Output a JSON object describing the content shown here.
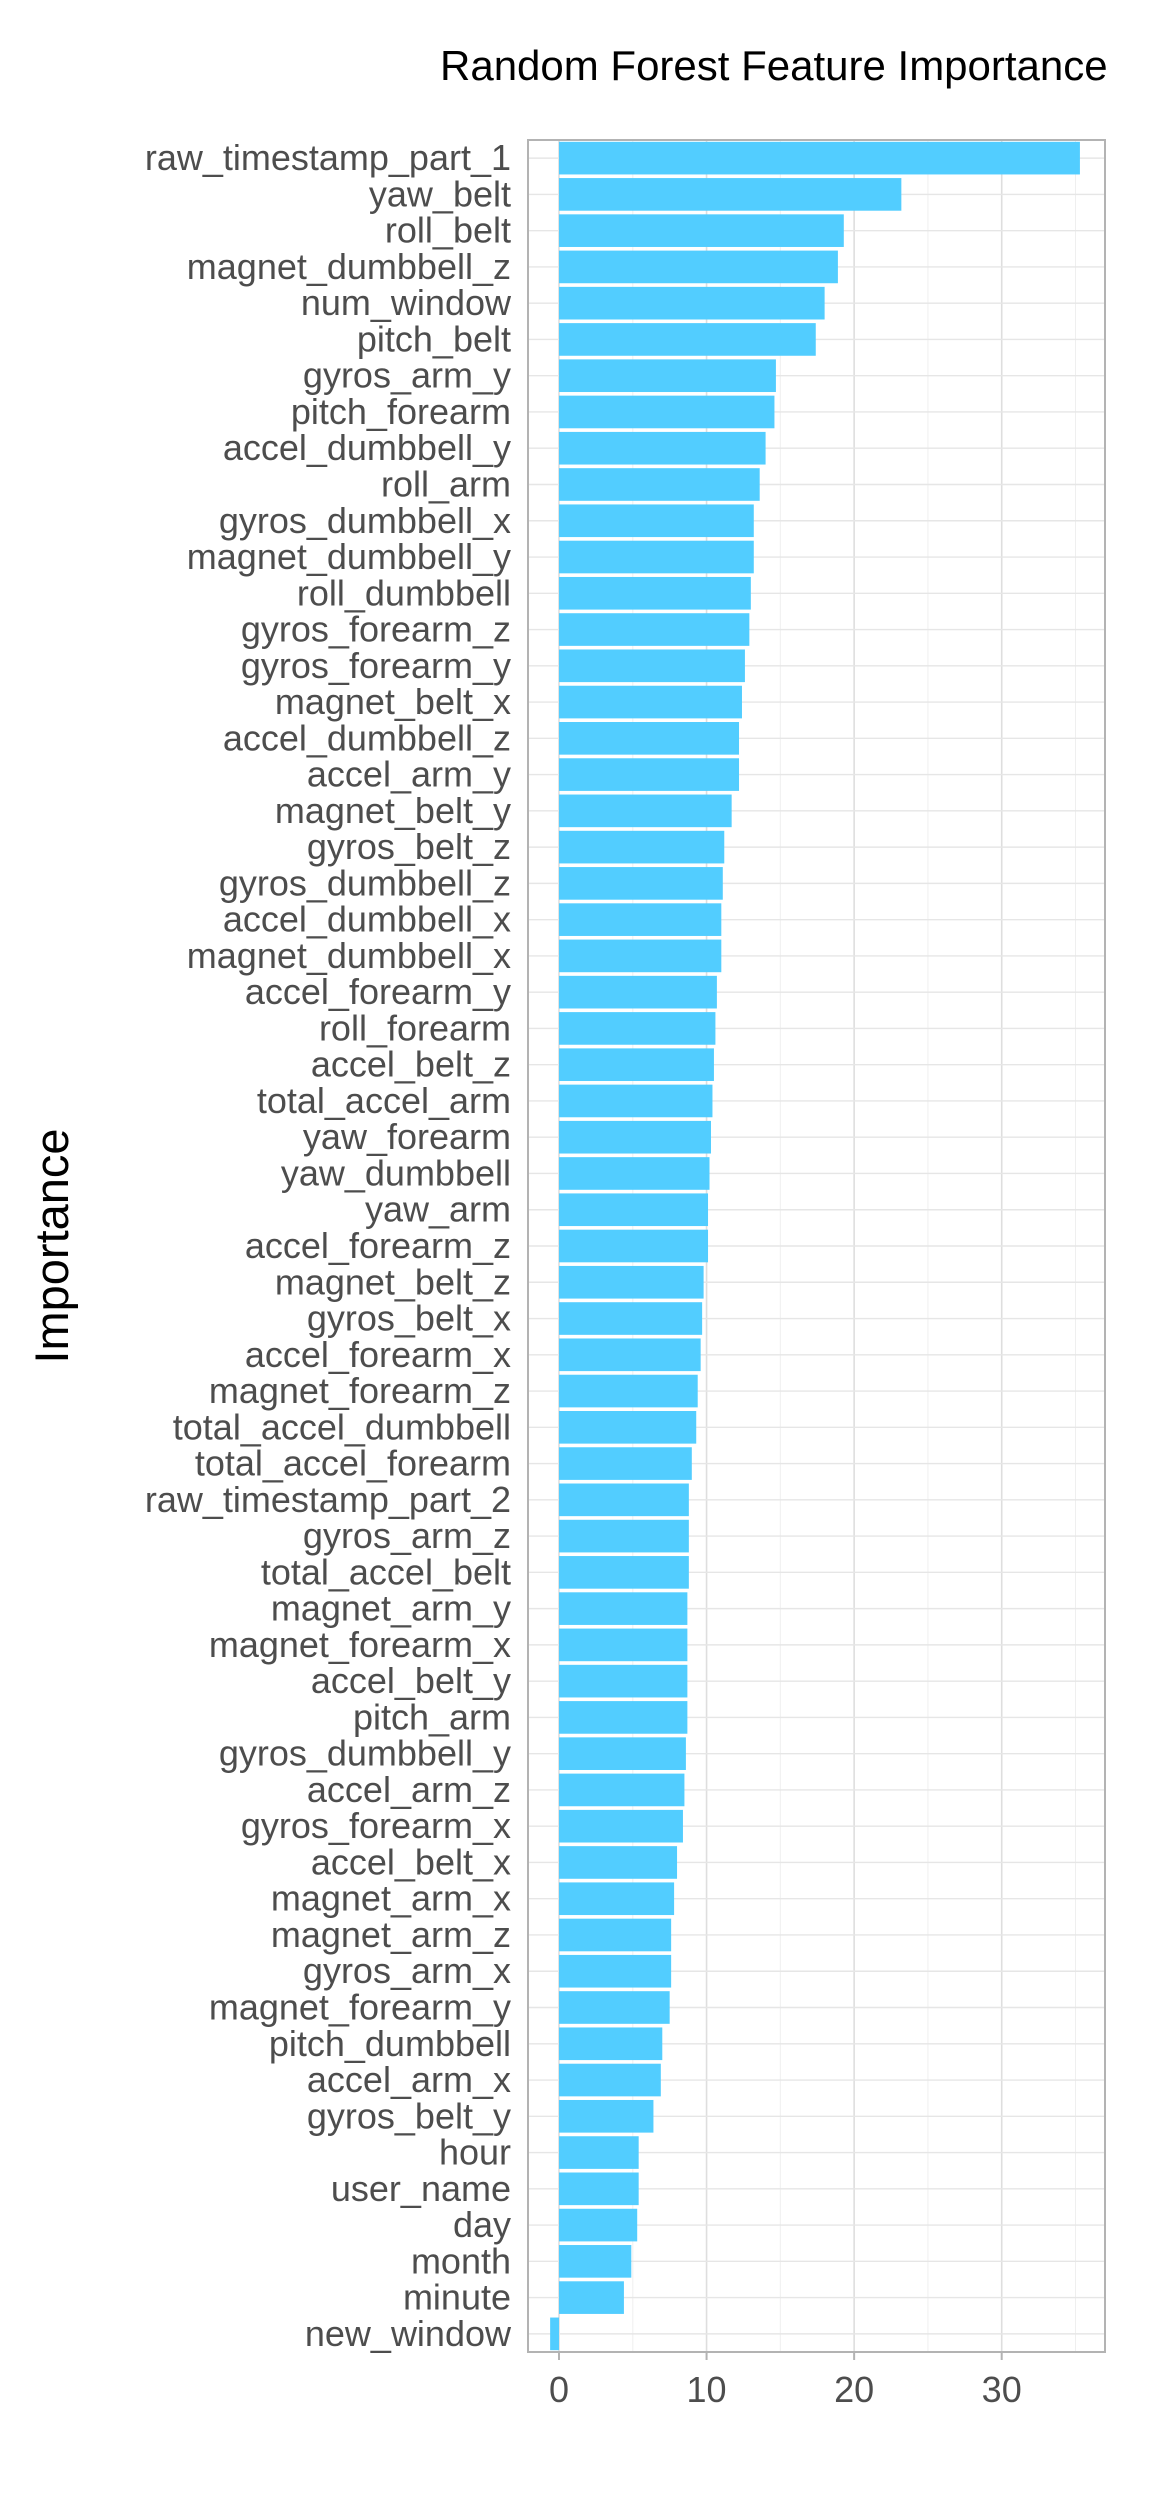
{
  "chart_data": {
    "type": "bar",
    "orientation": "horizontal",
    "title": "Random Forest Feature Importance",
    "ylabel": "Importance",
    "xlabel": "",
    "xlim": [
      -2.1,
      37.0
    ],
    "x_ticks": [
      0,
      10,
      20,
      30
    ],
    "grid": true,
    "legend": "none",
    "bar_color": "#52cdff",
    "categories": [
      "raw_timestamp_part_1",
      "yaw_belt",
      "roll_belt",
      "magnet_dumbbell_z",
      "num_window",
      "pitch_belt",
      "gyros_arm_y",
      "pitch_forearm",
      "accel_dumbbell_y",
      "roll_arm",
      "gyros_dumbbell_x",
      "magnet_dumbbell_y",
      "roll_dumbbell",
      "gyros_forearm_z",
      "gyros_forearm_y",
      "magnet_belt_x",
      "accel_dumbbell_z",
      "accel_arm_y",
      "magnet_belt_y",
      "gyros_belt_z",
      "gyros_dumbbell_z",
      "accel_dumbbell_x",
      "magnet_dumbbell_x",
      "accel_forearm_y",
      "roll_forearm",
      "accel_belt_z",
      "total_accel_arm",
      "yaw_forearm",
      "yaw_dumbbell",
      "yaw_arm",
      "accel_forearm_z",
      "magnet_belt_z",
      "gyros_belt_x",
      "accel_forearm_x",
      "magnet_forearm_z",
      "total_accel_dumbbell",
      "total_accel_forearm",
      "raw_timestamp_part_2",
      "gyros_arm_z",
      "total_accel_belt",
      "magnet_arm_y",
      "magnet_forearm_x",
      "accel_belt_y",
      "pitch_arm",
      "gyros_dumbbell_y",
      "accel_arm_z",
      "gyros_forearm_x",
      "accel_belt_x",
      "magnet_arm_x",
      "magnet_arm_z",
      "gyros_arm_x",
      "magnet_forearm_y",
      "pitch_dumbbell",
      "accel_arm_x",
      "gyros_belt_y",
      "hour",
      "user_name",
      "day",
      "month",
      "minute",
      "new_window"
    ],
    "values": [
      35.3,
      23.2,
      19.3,
      18.9,
      18.0,
      17.4,
      14.7,
      14.6,
      14.0,
      13.6,
      13.2,
      13.2,
      13.0,
      12.9,
      12.6,
      12.4,
      12.2,
      12.2,
      11.7,
      11.2,
      11.1,
      11.0,
      11.0,
      10.7,
      10.6,
      10.5,
      10.4,
      10.3,
      10.2,
      10.1,
      10.1,
      9.8,
      9.7,
      9.6,
      9.4,
      9.3,
      9.0,
      8.8,
      8.8,
      8.8,
      8.7,
      8.7,
      8.7,
      8.7,
      8.6,
      8.5,
      8.4,
      8.0,
      7.8,
      7.6,
      7.6,
      7.5,
      7.0,
      6.9,
      6.4,
      5.4,
      5.4,
      5.3,
      4.9,
      4.4,
      -0.6
    ]
  }
}
